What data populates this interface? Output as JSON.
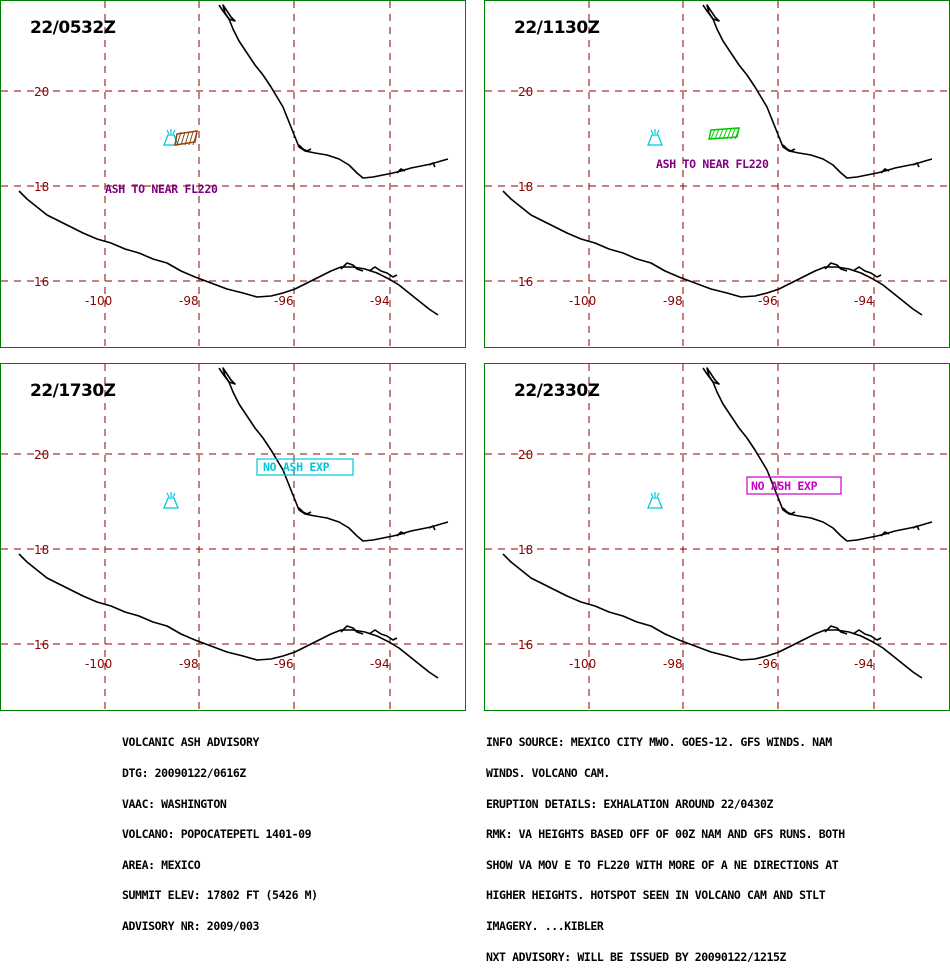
{
  "colors": {
    "frame": "#008000",
    "grid": "#8b0000",
    "coast": "#000000",
    "volcano": "#00c8dc",
    "ash_label": "#800080",
    "ash_area_1": "#8b4513",
    "ash_area_2": "#00c800",
    "no_ash_box_3": "#00c8dc",
    "no_ash_box_4": "#c800c8"
  },
  "lat_labels": [
    "20",
    "18",
    "16"
  ],
  "lon_labels": [
    "-100",
    "-98",
    "-96",
    "-94"
  ],
  "panels": [
    {
      "time": "22/0532Z",
      "label": "ASH TO NEAR FL220",
      "box_label": ""
    },
    {
      "time": "22/1130Z",
      "label": "ASH TO NEAR FL220",
      "box_label": ""
    },
    {
      "time": "22/1730Z",
      "label": "",
      "box_label": "NO ASH EXP"
    },
    {
      "time": "22/2330Z",
      "label": "",
      "box_label": "NO ASH EXP"
    }
  ],
  "advisory_left": [
    "VOLCANIC ASH ADVISORY",
    "DTG: 20090122/0616Z",
    "VAAC: WASHINGTON",
    "VOLCANO: POPOCATEPETL 1401-09",
    "AREA: MEXICO",
    "SUMMIT ELEV: 17802 FT (5426 M)",
    "ADVISORY NR: 2009/003"
  ],
  "advisory_right": [
    "INFO SOURCE: MEXICO CITY MWO. GOES-12. GFS WINDS. NAM",
    "WINDS. VOLCANO CAM.",
    "ERUPTION DETAILS: EXHALATION AROUND 22/0430Z",
    "RMK: VA HEIGHTS BASED OFF OF 00Z NAM AND GFS RUNS. BOTH",
    "SHOW VA MOV E TO FL220 WITH MORE OF A NE DIRECTIONS AT",
    "HIGHER HEIGHTS. HOTSPOT SEEN IN VOLCANO CAM AND STLT",
    "IMAGERY. ...KIBLER",
    "NXT ADVISORY: WILL BE ISSUED BY 20090122/1215Z"
  ]
}
